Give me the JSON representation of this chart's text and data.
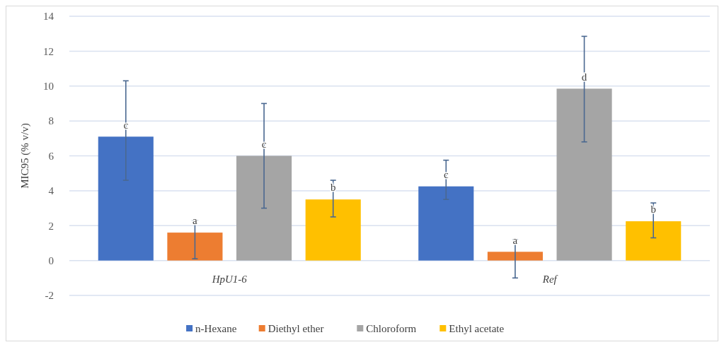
{
  "chart_data": {
    "type": "bar",
    "ylabel": "MIC95 (% v/v)",
    "categories": [
      "HpU1-6",
      "Ref"
    ],
    "series": [
      {
        "name": "n-Hexane",
        "color": "#4472c4",
        "values": [
          7.1,
          4.25
        ],
        "errors": [
          [
            4.6,
            10.3
          ],
          [
            3.5,
            5.75
          ]
        ]
      },
      {
        "name": "Diethyl ether",
        "color": "#ed7d31",
        "values": [
          1.6,
          0.5
        ],
        "errors": [
          [
            0.1,
            2.3
          ],
          [
            -1.0,
            1.2
          ]
        ]
      },
      {
        "name": "Chloroform",
        "color": "#a5a5a5",
        "values": [
          6.0,
          9.85
        ],
        "errors": [
          [
            3.0,
            9.0
          ],
          [
            6.8,
            12.85
          ]
        ]
      },
      {
        "name": "Ethyl acetate",
        "color": "#ffc000",
        "values": [
          3.5,
          2.25
        ],
        "errors": [
          [
            2.5,
            4.6
          ],
          [
            1.3,
            3.3
          ]
        ]
      }
    ],
    "annotations": [
      "c",
      "a",
      "c",
      "b",
      "c",
      "a",
      "d",
      "b"
    ],
    "ylim": [
      -2,
      14
    ],
    "yticks": [
      -2,
      0,
      2,
      4,
      6,
      8,
      10,
      12,
      14
    ],
    "grid": "y",
    "legend": "bottom"
  }
}
